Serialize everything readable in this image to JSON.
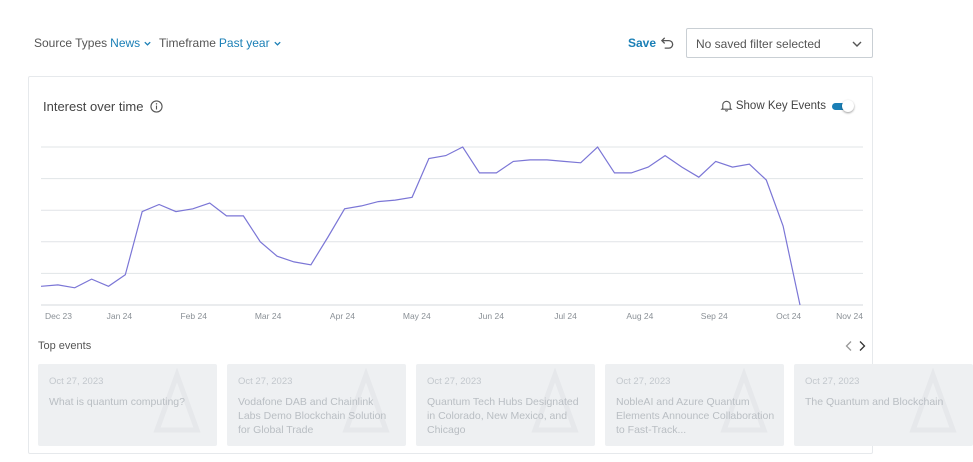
{
  "filters": {
    "source_types": {
      "label": "Source Types",
      "value": "News"
    },
    "timeframe": {
      "label": "Timeframe",
      "value": "Past year"
    },
    "save_label": "Save",
    "saved_filter_placeholder": "No saved filter selected"
  },
  "card": {
    "title": "Interest over time",
    "key_events_label": "Show Key Events",
    "key_events_on": true,
    "top_events_label": "Top events"
  },
  "chart_data": {
    "type": "line",
    "title": "Interest over time",
    "xlabel": "",
    "ylabel": "",
    "tick_labels": [
      "Dec 23",
      "Jan 24",
      "Feb 24",
      "Mar 24",
      "Apr 24",
      "May 24",
      "Jun 24",
      "Jul 24",
      "Aug 24",
      "Sep 24",
      "Oct 24",
      "Nov 24"
    ],
    "grid": true,
    "line_color": "#7b76d6",
    "series": [
      {
        "values": [
          3,
          4,
          2,
          8,
          3,
          11,
          55,
          60,
          55,
          57,
          61,
          52,
          52,
          34,
          24,
          20,
          18,
          37,
          57,
          59,
          62,
          63,
          65,
          92,
          94,
          100,
          82,
          82,
          90,
          91,
          91,
          90,
          89,
          100,
          82,
          82,
          86,
          94,
          86,
          79,
          90,
          86,
          88,
          77,
          45,
          -10
        ]
      }
    ]
  },
  "events": [
    {
      "date": "Oct 27, 2023",
      "title": "What is quantum computing?"
    },
    {
      "date": "Oct 27, 2023",
      "title": "Vodafone DAB and Chainlink Labs Demo Blockchain Solution for Global Trade"
    },
    {
      "date": "Oct 27, 2023",
      "title": "Quantum Tech Hubs Designated in Colorado, New Mexico, and Chicago"
    },
    {
      "date": "Oct 27, 2023",
      "title": "NobleAI and Azure Quantum Elements Announce Collaboration to Fast-Track..."
    },
    {
      "date": "Oct 27, 2023",
      "title": "The Quantum and Blockchain"
    }
  ]
}
